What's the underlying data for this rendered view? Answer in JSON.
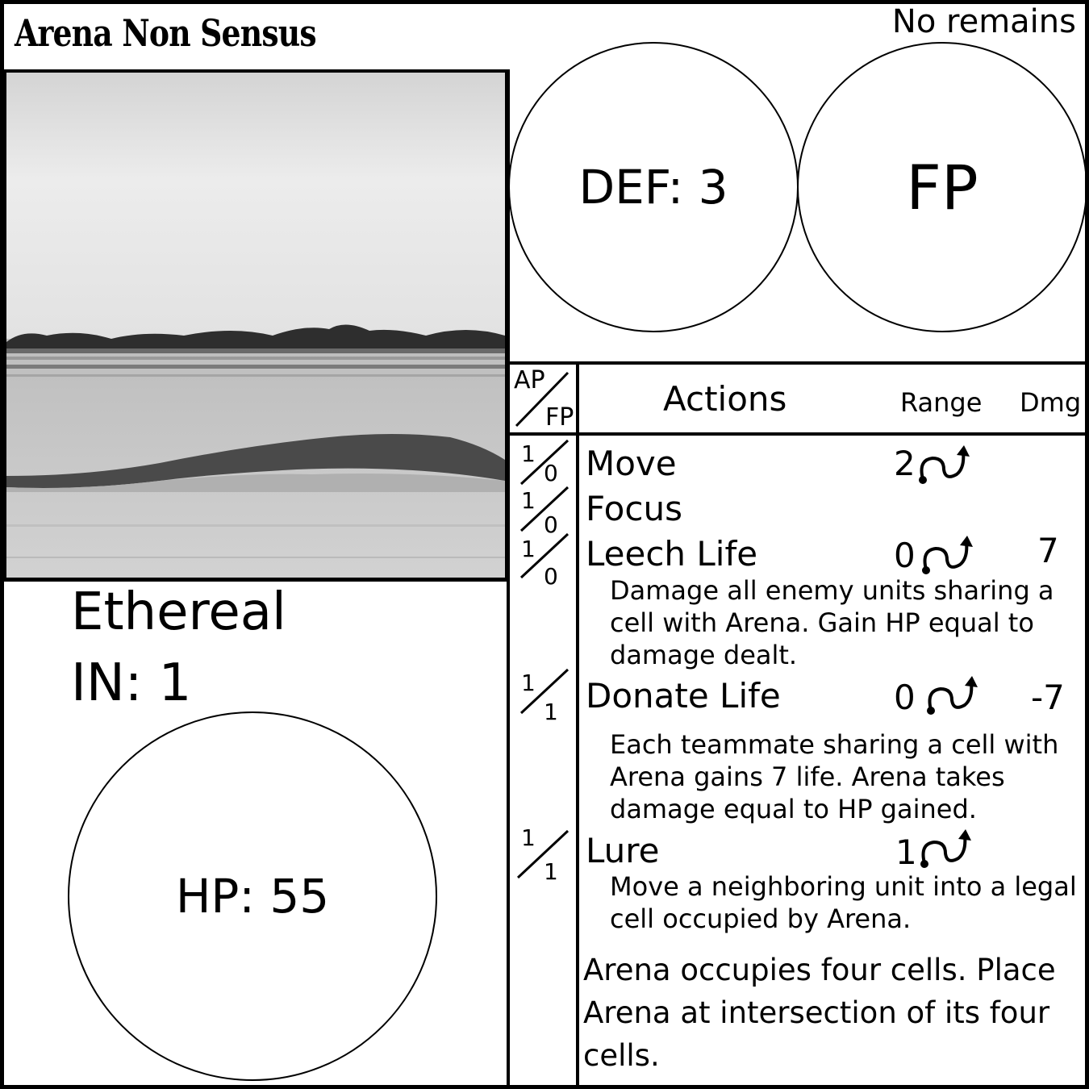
{
  "card": {
    "title": "Arena Non Sensus",
    "remains": "No remains",
    "def_label": "DEF: 3",
    "fp_label": "FP",
    "type": "Ethereal",
    "initiative": "IN: 1",
    "hp_label": "HP: 55"
  },
  "table": {
    "ap_header": "AP",
    "fp_header": "FP",
    "actions_header": "Actions",
    "range_header": "Range",
    "dmg_header": "Dmg"
  },
  "actions": [
    {
      "name": "Move",
      "ap": "1",
      "fp": "0",
      "range": "2",
      "dmg": "",
      "range_icon": "curved-arrow-icon",
      "description": ""
    },
    {
      "name": "Focus",
      "ap": "1",
      "fp": "0",
      "range": "",
      "dmg": "",
      "description": ""
    },
    {
      "name": "Leech Life",
      "ap": "1",
      "fp": "0",
      "range": "0",
      "dmg": "7",
      "range_icon": "curved-arrow-icon",
      "description": "Damage all enemy units sharing a cell with Arena.  Gain HP equal to damage dealt."
    },
    {
      "name": "Donate Life",
      "ap": "1",
      "fp": "1",
      "range": "0",
      "dmg": "-7",
      "range_icon": "curved-arrow-icon",
      "description": "Each teammate sharing a cell with Arena gains 7 life.  Arena takes damage equal to HP gained."
    },
    {
      "name": "Lure",
      "ap": "1",
      "fp": "1",
      "range": "1",
      "dmg": "",
      "range_icon": "curved-arrow-icon",
      "description": "Move a neighboring unit into a legal cell occupied by Arena."
    }
  ],
  "footer_text": "Arena occupies four cells.  Place Arena at intersection of its four cells.",
  "colors": {
    "ink": "#000000",
    "paper": "#ffffff",
    "photo_sky": "#e6e6e6",
    "photo_ground": "#c8c8c8"
  }
}
